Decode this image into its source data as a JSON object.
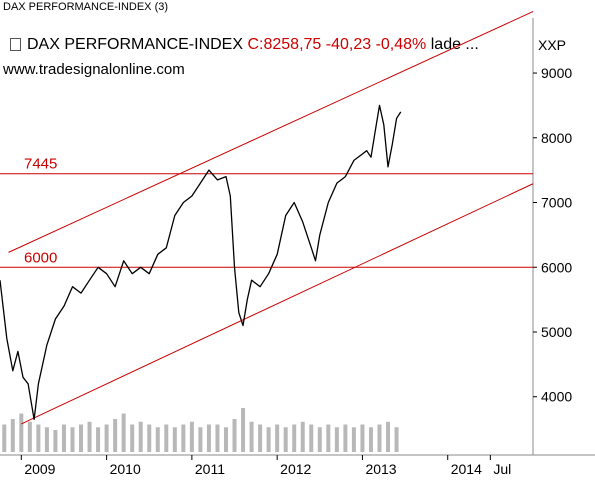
{
  "window_title": "DAX PERFORMANCE-INDEX (3)",
  "header": {
    "name": "DAX PERFORMANCE-INDEX",
    "quote": "C:8258,75 -40,23 -0,48%",
    "status": "lade ..."
  },
  "source": "www.tradesignalonline.com",
  "symbol": "XXP",
  "colors": {
    "price": "#000000",
    "lines": "#cc0000",
    "grid": "#cccccc",
    "volume": "#b8b8b8",
    "axis": "#000000"
  },
  "chart_data": {
    "type": "line",
    "y_ticks": [
      4000,
      5000,
      6000,
      7000,
      8000,
      9000
    ],
    "x_ticks": [
      "2009",
      "2010",
      "2011",
      "2012",
      "2013",
      "2014",
      "Jul"
    ],
    "x_tick_values": [
      2009.0,
      2010.0,
      2011.0,
      2012.0,
      2013.0,
      2014.0,
      2014.5
    ],
    "xlim": [
      2008.75,
      2015.0
    ],
    "ylim": [
      3100,
      9850
    ],
    "horizontal_levels": [
      {
        "label": "7445",
        "value": 7445
      },
      {
        "label": "6000",
        "value": 6000
      }
    ],
    "trend_channel": [
      {
        "name": "upper",
        "points": [
          [
            2008.85,
            6230
          ],
          [
            2015.0,
            9950
          ]
        ]
      },
      {
        "name": "lower",
        "points": [
          [
            2009.0,
            3580
          ],
          [
            2015.0,
            7290
          ]
        ]
      }
    ],
    "series": [
      {
        "x": [
          2008.75,
          2008.83,
          2008.9,
          2008.96,
          2009.02,
          2009.08,
          2009.15,
          2009.2,
          2009.3,
          2009.4,
          2009.5,
          2009.6,
          2009.7,
          2009.8,
          2009.9,
          2010.0,
          2010.1,
          2010.2,
          2010.3,
          2010.4,
          2010.5,
          2010.6,
          2010.7,
          2010.8,
          2010.9,
          2011.0,
          2011.1,
          2011.2,
          2011.3,
          2011.4,
          2011.45,
          2011.5,
          2011.55,
          2011.6,
          2011.65,
          2011.7,
          2011.8,
          2011.9,
          2012.0,
          2012.1,
          2012.2,
          2012.3,
          2012.4,
          2012.45,
          2012.5,
          2012.6,
          2012.7,
          2012.8,
          2012.9,
          2013.0,
          2013.05,
          2013.1,
          2013.15,
          2013.2,
          2013.25,
          2013.3,
          2013.35,
          2013.4,
          2013.45
        ],
        "values": [
          5800,
          4900,
          4400,
          4700,
          4300,
          4200,
          3650,
          4200,
          4800,
          5200,
          5400,
          5700,
          5600,
          5800,
          6000,
          5900,
          5700,
          6100,
          5900,
          6000,
          5900,
          6200,
          6300,
          6800,
          7000,
          7100,
          7300,
          7500,
          7350,
          7400,
          7100,
          6000,
          5300,
          5100,
          5500,
          5800,
          5700,
          5900,
          6200,
          6800,
          7000,
          6700,
          6300,
          6100,
          6500,
          7000,
          7300,
          7400,
          7650,
          7750,
          7800,
          7700,
          8100,
          8500,
          8200,
          7550,
          7900,
          8300,
          8400
        ]
      }
    ],
    "volume_x": [
      2008.8,
      2008.9,
      2009.0,
      2009.1,
      2009.2,
      2009.3,
      2009.4,
      2009.5,
      2009.6,
      2009.7,
      2009.8,
      2009.9,
      2010.0,
      2010.1,
      2010.2,
      2010.3,
      2010.4,
      2010.5,
      2010.6,
      2010.7,
      2010.8,
      2010.9,
      2011.0,
      2011.1,
      2011.2,
      2011.3,
      2011.4,
      2011.5,
      2011.6,
      2011.7,
      2011.8,
      2011.9,
      2012.0,
      2012.1,
      2012.2,
      2012.3,
      2012.4,
      2012.5,
      2012.6,
      2012.7,
      2012.8,
      2012.9,
      2013.0,
      2013.1,
      2013.2,
      2013.3,
      2013.4
    ],
    "volume": [
      0.5,
      0.6,
      0.7,
      0.55,
      0.5,
      0.45,
      0.4,
      0.5,
      0.45,
      0.5,
      0.55,
      0.45,
      0.5,
      0.6,
      0.7,
      0.5,
      0.55,
      0.5,
      0.45,
      0.5,
      0.45,
      0.5,
      0.55,
      0.45,
      0.5,
      0.5,
      0.45,
      0.6,
      0.8,
      0.55,
      0.5,
      0.45,
      0.5,
      0.45,
      0.5,
      0.55,
      0.5,
      0.45,
      0.5,
      0.45,
      0.5,
      0.45,
      0.5,
      0.45,
      0.5,
      0.55,
      0.45
    ]
  }
}
